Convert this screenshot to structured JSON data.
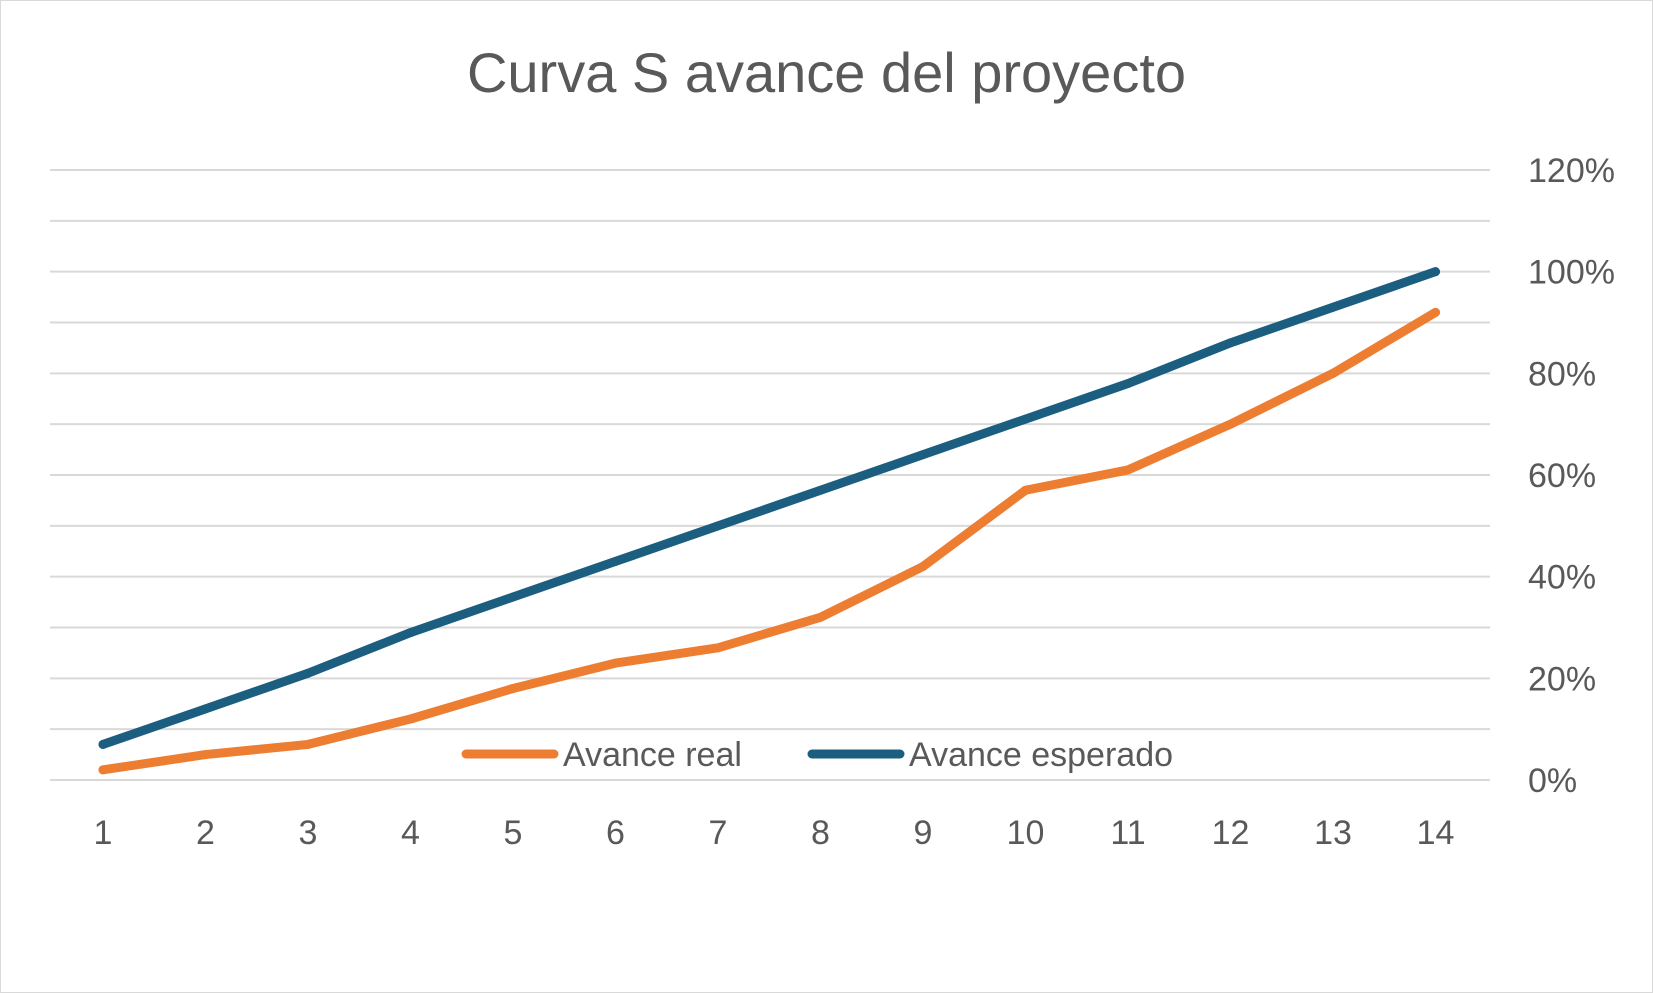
{
  "chart_data": {
    "type": "line",
    "title": "Curva S avance del proyecto",
    "xlabel": "",
    "ylabel": "",
    "categories": [
      "1",
      "2",
      "3",
      "4",
      "5",
      "6",
      "7",
      "8",
      "9",
      "10",
      "11",
      "12",
      "13",
      "14"
    ],
    "series": [
      {
        "name": "Avance real",
        "color": "#ED7D31",
        "values": [
          0.02,
          0.05,
          0.07,
          0.12,
          0.18,
          0.23,
          0.26,
          0.32,
          0.42,
          0.57,
          0.61,
          0.7,
          0.8,
          0.92
        ]
      },
      {
        "name": "Avance esperado",
        "color": "#1B5E80",
        "values": [
          0.07,
          0.14,
          0.21,
          0.29,
          0.36,
          0.43,
          0.5,
          0.57,
          0.64,
          0.71,
          0.78,
          0.86,
          0.93,
          1.0
        ]
      }
    ],
    "ylim": [
      0,
      1.2
    ],
    "y_ticks": [
      "0%",
      "20%",
      "40%",
      "60%",
      "80%",
      "100%",
      "120%"
    ],
    "y_axis_side": "right",
    "grid": true,
    "legend_position": "bottom-inside"
  }
}
